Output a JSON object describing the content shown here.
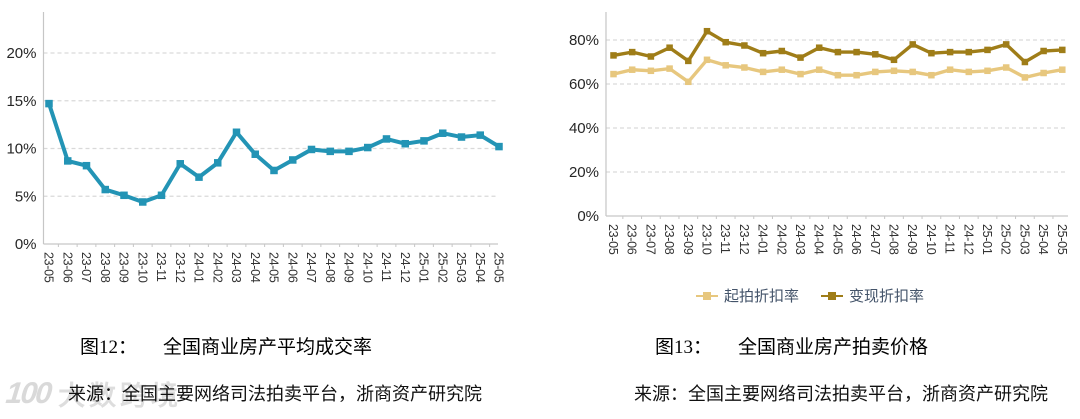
{
  "watermark": {
    "logo": "100",
    "text": "大数跨境"
  },
  "chart_data": [
    {
      "type": "line",
      "figure_label": "图12：",
      "title": "全国商业房产平均成交率",
      "source": "来源：全国主要网络司法拍卖平台，浙商资产研究院",
      "categories": [
        "23-05",
        "23-06",
        "23-07",
        "23-08",
        "23-09",
        "23-10",
        "23-11",
        "23-12",
        "24-01",
        "24-02",
        "24-03",
        "24-04",
        "24-05",
        "24-06",
        "24-07",
        "24-08",
        "24-09",
        "24-10",
        "24-11",
        "24-12",
        "25-01",
        "25-02",
        "25-03",
        "25-04",
        "25-05"
      ],
      "series": [
        {
          "name": "全国商业房产平均成交率",
          "color": "#2394b5",
          "values": [
            14.7,
            8.7,
            8.2,
            5.7,
            5.1,
            4.4,
            5.1,
            8.4,
            7.0,
            8.5,
            11.7,
            9.4,
            7.7,
            8.8,
            9.9,
            9.7,
            9.7,
            10.1,
            11.0,
            10.5,
            10.8,
            11.6,
            11.2,
            11.4,
            10.2
          ]
        }
      ],
      "xlabel": "",
      "ylabel": "",
      "ylim": [
        0,
        24.3
      ],
      "yticks": [
        0,
        5,
        10,
        15,
        20
      ],
      "ytick_labels": [
        "0%",
        "5%",
        "10%",
        "15%",
        "20%"
      ],
      "grid": "dashed-horizontal",
      "legend_position": "none"
    },
    {
      "type": "line",
      "figure_label": "图13：",
      "title": "全国商业房产拍卖价格",
      "source": "来源：全国主要网络司法拍卖平台，浙商资产研究院",
      "categories": [
        "23-05",
        "23-06",
        "23-07",
        "23-08",
        "23-09",
        "23-10",
        "23-11",
        "23-12",
        "24-01",
        "24-02",
        "24-03",
        "24-04",
        "24-05",
        "24-06",
        "24-07",
        "24-08",
        "24-09",
        "24-10",
        "24-11",
        "24-12",
        "25-01",
        "25-02",
        "25-03",
        "25-04",
        "25-05"
      ],
      "series": [
        {
          "name": "起拍折扣率",
          "color": "#e7c77e",
          "values": [
            64.5,
            66.5,
            66,
            67,
            61,
            71,
            68.5,
            67.5,
            65.5,
            66.5,
            64.5,
            66.5,
            64,
            64,
            65.5,
            66,
            65.5,
            64,
            66.5,
            65.5,
            66,
            67.5,
            63,
            65,
            66.5
          ]
        },
        {
          "name": "变现折扣率",
          "color": "#9f7d18",
          "values": [
            73,
            74.5,
            72.5,
            76.5,
            70.5,
            84,
            79,
            77.5,
            74,
            75,
            72,
            76.5,
            74.5,
            74.5,
            73.5,
            71,
            78,
            74,
            74.5,
            74.5,
            75.5,
            78,
            70,
            75,
            75.5
          ]
        }
      ],
      "xlabel": "",
      "ylabel": "",
      "ylim": [
        0,
        93
      ],
      "yticks": [
        0,
        20,
        40,
        60,
        80
      ],
      "ytick_labels": [
        "0%",
        "20%",
        "40%",
        "60%",
        "80%"
      ],
      "grid": "dashed-horizontal",
      "legend_position": "bottom",
      "legend_text_color": "#44546a"
    }
  ],
  "style": {
    "grid_color": "#d9d9d9",
    "axis_color": "#c6c6c6",
    "ytick_text_color": "#262626",
    "xtick_text_color": "#333333"
  }
}
